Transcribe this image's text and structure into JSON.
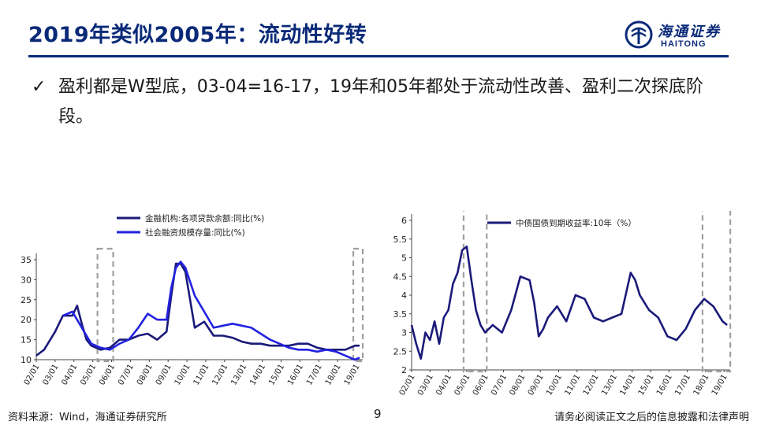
{
  "header": {
    "title": "2019年类似2005年：流动性好转",
    "logo_cn": "海通证券",
    "logo_en": "HAITONG",
    "logo_mark": "haitong-logo-icon"
  },
  "bullet": {
    "icon": "check-icon",
    "text": "盈利都是W型底，03-04=16-17，19年和05年都处于流动性改善、盈利二次探底阶段。"
  },
  "chart_data": [
    {
      "type": "line",
      "series": [
        {
          "name": "金融机构:各项贷款余额:同比(%)",
          "color": "#1a1a7a",
          "x": [
            "2002-01",
            "2002-06",
            "2003-01",
            "2003-06",
            "2003-12",
            "2004-03",
            "2004-06",
            "2004-09",
            "2004-12",
            "2005-06",
            "2005-12",
            "2006-06",
            "2006-12",
            "2007-06",
            "2007-12",
            "2008-06",
            "2008-12",
            "2009-03",
            "2009-06",
            "2009-09",
            "2009-12",
            "2010-06",
            "2010-12",
            "2011-06",
            "2011-12",
            "2012-06",
            "2012-12",
            "2013-06",
            "2013-12",
            "2014-06",
            "2014-12",
            "2015-06",
            "2015-12",
            "2016-06",
            "2016-12",
            "2017-06",
            "2017-12",
            "2018-06",
            "2018-12",
            "2019-03"
          ],
          "values": [
            11,
            12.5,
            17,
            21,
            21,
            23.5,
            19,
            15,
            13.5,
            12.5,
            13,
            15,
            15,
            16,
            16.5,
            15,
            17,
            26,
            34,
            34,
            32,
            18,
            19.5,
            16,
            16,
            15.5,
            14.5,
            14,
            14,
            13.5,
            13.5,
            13.5,
            14,
            14,
            13,
            12.5,
            12.5,
            12.5,
            13.5,
            13.5
          ]
        },
        {
          "name": "社会融资规模存量:同比(%)",
          "color": "#2222e0",
          "x": [
            "2003-06",
            "2003-12",
            "2004-06",
            "2004-12",
            "2005-06",
            "2005-12",
            "2006-06",
            "2006-12",
            "2007-06",
            "2007-12",
            "2008-06",
            "2008-12",
            "2009-03",
            "2009-06",
            "2009-09",
            "2009-12",
            "2010-06",
            "2010-12",
            "2011-06",
            "2011-12",
            "2012-06",
            "2012-12",
            "2013-06",
            "2013-12",
            "2014-06",
            "2014-12",
            "2015-06",
            "2015-12",
            "2016-06",
            "2016-12",
            "2017-06",
            "2017-12",
            "2018-06",
            "2018-12",
            "2019-03"
          ],
          "values": [
            21,
            22,
            18,
            14,
            13,
            12.5,
            14,
            15,
            18,
            21.5,
            20,
            20,
            28,
            33,
            34.5,
            33,
            26,
            22,
            18,
            18.5,
            19,
            18.5,
            18,
            16.5,
            15,
            14,
            13,
            12.5,
            12.5,
            12,
            12.5,
            12,
            11,
            10,
            10.5
          ]
        }
      ],
      "y_ticks": [
        "10",
        "15",
        "20",
        "25",
        "30",
        "35"
      ],
      "x_ticks": [
        "02/01",
        "03/01",
        "04/01",
        "05/01",
        "06/01",
        "07/01",
        "08/01",
        "09/01",
        "10/01",
        "11/01",
        "12/01",
        "13/01",
        "14/01",
        "15/01",
        "16/01",
        "17/01",
        "18/01",
        "19/01"
      ],
      "ylim": [
        10,
        35
      ],
      "highlight_windows": [
        [
          "2005-06",
          "2005-12"
        ],
        [
          "2019-01",
          "2019-03"
        ]
      ]
    },
    {
      "type": "line",
      "series": [
        {
          "name": "中债国债到期收益率:10年（%）",
          "color": "#1a1a7a",
          "x": [
            "2002-01",
            "2002-04",
            "2002-07",
            "2002-10",
            "2003-01",
            "2003-04",
            "2003-07",
            "2003-10",
            "2004-01",
            "2004-04",
            "2004-07",
            "2004-10",
            "2005-01",
            "2005-04",
            "2005-07",
            "2005-10",
            "2006-01",
            "2006-06",
            "2006-12",
            "2007-06",
            "2007-12",
            "2008-06",
            "2008-09",
            "2008-12",
            "2009-03",
            "2009-06",
            "2009-12",
            "2010-06",
            "2010-12",
            "2011-06",
            "2011-12",
            "2012-06",
            "2012-12",
            "2013-06",
            "2013-12",
            "2014-03",
            "2014-06",
            "2014-12",
            "2015-06",
            "2015-12",
            "2016-06",
            "2016-12",
            "2017-06",
            "2017-12",
            "2018-06",
            "2018-12",
            "2019-03"
          ],
          "values": [
            3.2,
            2.7,
            2.3,
            3.0,
            2.8,
            3.3,
            2.7,
            3.4,
            3.6,
            4.3,
            4.6,
            5.2,
            5.3,
            4.4,
            3.6,
            3.2,
            3.0,
            3.2,
            3.0,
            3.6,
            4.5,
            4.4,
            3.8,
            2.9,
            3.1,
            3.4,
            3.7,
            3.3,
            4.0,
            3.9,
            3.4,
            3.3,
            3.4,
            3.5,
            4.6,
            4.4,
            4.0,
            3.6,
            3.4,
            2.9,
            2.8,
            3.1,
            3.6,
            3.9,
            3.7,
            3.3,
            3.2
          ]
        }
      ],
      "y_ticks": [
        "2",
        "2.5",
        "3",
        "3.5",
        "4",
        "4.5",
        "5",
        "5.5",
        "6"
      ],
      "x_ticks": [
        "02/01",
        "03/01",
        "04/01",
        "05/01",
        "06/01",
        "07/01",
        "08/01",
        "09/01",
        "10/01",
        "11/01",
        "12/01",
        "13/01",
        "14/01",
        "15/01",
        "16/01",
        "17/01",
        "18/01",
        "19/01"
      ],
      "ylim": [
        2,
        6
      ],
      "highlight_windows": [
        [
          "2005-01",
          "2005-12"
        ],
        [
          "2018-01",
          "2019-03"
        ]
      ]
    }
  ],
  "footer": {
    "source": "资料来源：Wind，海通证券研究所",
    "page": "9",
    "disclaimer": "请务必阅读正文之后的信息披露和法律声明"
  }
}
